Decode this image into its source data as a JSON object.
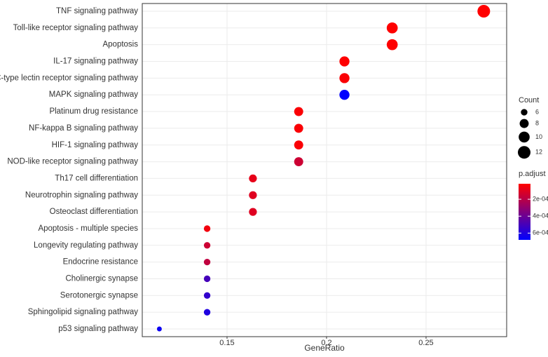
{
  "chart_data": {
    "type": "scatter",
    "xlabel": "GeneRatio",
    "categories": [
      "TNF signaling pathway",
      "Toll-like receptor signaling pathway",
      "Apoptosis",
      "IL-17 signaling pathway",
      "C-type lectin receptor signaling pathway",
      "MAPK signaling pathway",
      "Platinum drug resistance",
      "NF-kappa B signaling pathway",
      "HIF-1 signaling pathway",
      "NOD-like receptor signaling pathway",
      "Th17 cell differentiation",
      "Neurotrophin signaling pathway",
      "Osteoclast differentiation",
      "Apoptosis - multiple species",
      "Longevity regulating pathway",
      "Endocrine resistance",
      "Cholinergic synapse",
      "Serotonergic synapse",
      "Sphingolipid signaling pathway",
      "p53 signaling pathway"
    ],
    "x": [
      0.279,
      0.233,
      0.233,
      0.209,
      0.209,
      0.209,
      0.186,
      0.186,
      0.186,
      0.186,
      0.163,
      0.163,
      0.163,
      0.14,
      0.14,
      0.14,
      0.14,
      0.14,
      0.14,
      0.116
    ],
    "sizes": [
      12,
      10,
      10,
      9,
      9,
      9,
      8,
      8,
      8,
      8,
      7,
      7,
      7,
      6,
      6,
      6,
      6,
      6,
      6,
      5
    ],
    "colors": [
      1.7e-05,
      2e-05,
      2e-05,
      2e-05,
      3e-05,
      0.00068,
      3e-05,
      3e-05,
      3e-05,
      0.00015,
      8e-05,
      0.0001,
      0.0001,
      5e-05,
      0.00015,
      0.00018,
      0.0005,
      0.00055,
      0.0006,
      0.00065
    ],
    "xlim": [
      0.1074,
      0.2905
    ],
    "xticks": [
      0.15,
      0.2,
      0.25
    ],
    "grid": true,
    "size_title": "Count",
    "size_ticks": [
      6,
      8,
      10,
      12
    ],
    "color_title": "p.adjust",
    "color_scale": [
      "#FF0000",
      "#0000FF"
    ],
    "color_lim": [
      1.7e-05,
      0.00068
    ],
    "color_ticks": [
      {
        "value": 0.0002,
        "label": "2e-04"
      },
      {
        "value": 0.0004,
        "label": "4e-04"
      },
      {
        "value": 0.0006,
        "label": "6e-04"
      }
    ]
  }
}
